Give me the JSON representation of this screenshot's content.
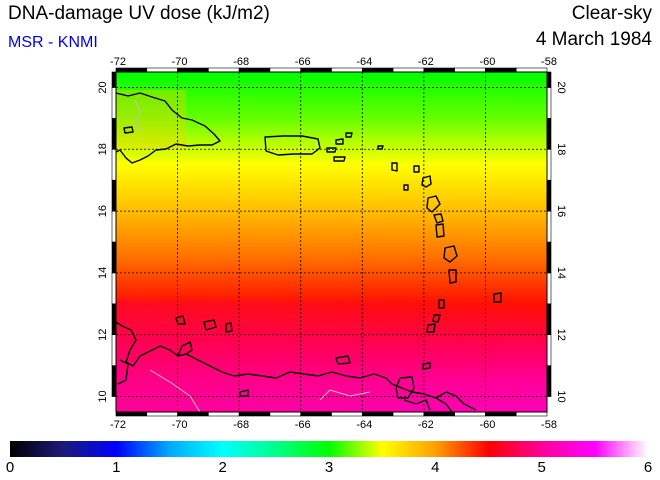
{
  "header": {
    "title": "DNA-damage UV dose (kJ/m2)",
    "source": "MSR - KNMI",
    "sky_condition": "Clear-sky",
    "date": "4 March 1984"
  },
  "colors": {
    "source_text": "#0000ee",
    "coastline": "#000000",
    "borders": "#c0c0c0",
    "grid": "#000000"
  },
  "map": {
    "lon_range": [
      -72,
      -58
    ],
    "lat_range": [
      9.5,
      20.5
    ],
    "lon_ticks": [
      "-72",
      "-70",
      "-68",
      "-66",
      "-64",
      "-62",
      "-60",
      "-58"
    ],
    "lat_ticks": [
      "10",
      "12",
      "14",
      "16",
      "18",
      "20"
    ],
    "dose_by_latitude": [
      {
        "lat": 20.5,
        "dose": 3.0
      },
      {
        "lat": 19.0,
        "dose": 3.2
      },
      {
        "lat": 17.5,
        "dose": 3.5
      },
      {
        "lat": 16.0,
        "dose": 3.85
      },
      {
        "lat": 14.5,
        "dose": 4.15
      },
      {
        "lat": 13.0,
        "dose": 4.45
      },
      {
        "lat": 11.5,
        "dose": 4.8
      },
      {
        "lat": 10.5,
        "dose": 5.0
      },
      {
        "lat": 9.5,
        "dose": 5.15
      }
    ]
  },
  "colorbar": {
    "min": 0,
    "max": 6,
    "labels": [
      "0",
      "1",
      "2",
      "3",
      "4",
      "5",
      "6"
    ],
    "stops": [
      {
        "value": 0.0,
        "color": "#000000"
      },
      {
        "value": 0.5,
        "color": "#1c1a7a"
      },
      {
        "value": 1.0,
        "color": "#0000ff"
      },
      {
        "value": 1.5,
        "color": "#00aaff"
      },
      {
        "value": 2.0,
        "color": "#00ffff"
      },
      {
        "value": 2.5,
        "color": "#00ff88"
      },
      {
        "value": 3.0,
        "color": "#00ff00"
      },
      {
        "value": 3.5,
        "color": "#ffff00"
      },
      {
        "value": 4.0,
        "color": "#ffa000"
      },
      {
        "value": 4.5,
        "color": "#ff0000"
      },
      {
        "value": 5.0,
        "color": "#ff0099"
      },
      {
        "value": 5.5,
        "color": "#ff00ff"
      },
      {
        "value": 6.0,
        "color": "#ffffff"
      }
    ]
  }
}
